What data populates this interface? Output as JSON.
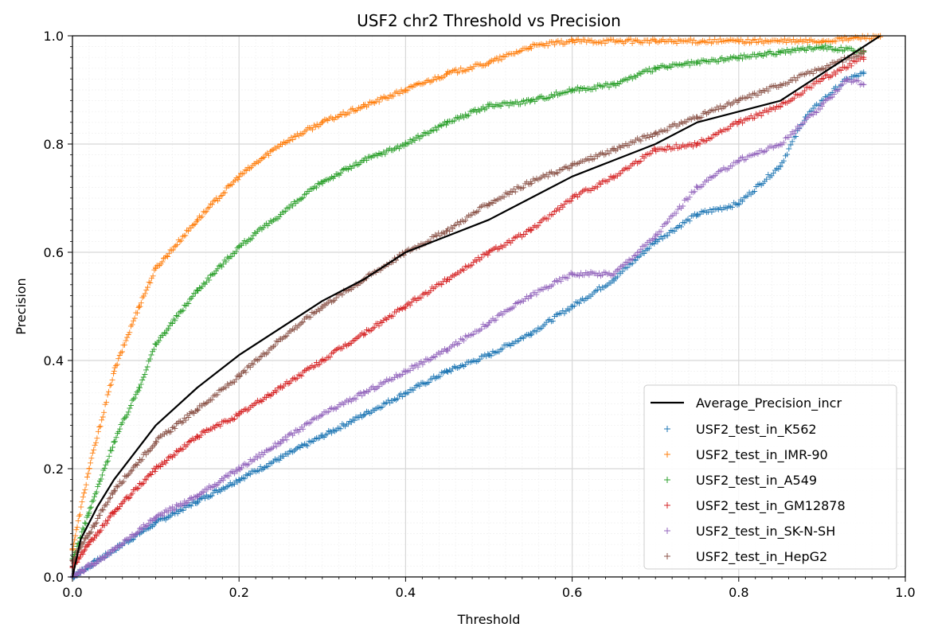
{
  "chart_data": {
    "type": "scatter",
    "title": "USF2 chr2 Threshold vs Precision",
    "xlabel": "Threshold",
    "ylabel": "Precision",
    "xlim": [
      0.0,
      1.0
    ],
    "ylim": [
      0.0,
      1.0
    ],
    "x_ticks": [
      "0.0",
      "0.2",
      "0.4",
      "0.6",
      "0.8",
      "1.0"
    ],
    "y_ticks": [
      "0.0",
      "0.2",
      "0.4",
      "0.6",
      "0.8",
      "1.0"
    ],
    "grid": true,
    "minor_grid": true,
    "legend_position": "lower-right",
    "line": {
      "name": "Average_Precision_incr",
      "color": "#000000",
      "points": [
        [
          0.0,
          0.0
        ],
        [
          0.01,
          0.07
        ],
        [
          0.03,
          0.13
        ],
        [
          0.05,
          0.18
        ],
        [
          0.1,
          0.28
        ],
        [
          0.15,
          0.35
        ],
        [
          0.2,
          0.41
        ],
        [
          0.25,
          0.46
        ],
        [
          0.3,
          0.51
        ],
        [
          0.35,
          0.55
        ],
        [
          0.4,
          0.6
        ],
        [
          0.45,
          0.63
        ],
        [
          0.5,
          0.66
        ],
        [
          0.55,
          0.7
        ],
        [
          0.6,
          0.74
        ],
        [
          0.65,
          0.77
        ],
        [
          0.7,
          0.8
        ],
        [
          0.75,
          0.84
        ],
        [
          0.8,
          0.86
        ],
        [
          0.85,
          0.88
        ],
        [
          0.9,
          0.93
        ],
        [
          0.95,
          0.98
        ],
        [
          0.97,
          1.0
        ]
      ]
    },
    "series": [
      {
        "name": "USF2_test_in_K562",
        "color": "#1f77b4",
        "points": [
          [
            0.0,
            0.0
          ],
          [
            0.05,
            0.05
          ],
          [
            0.1,
            0.1
          ],
          [
            0.15,
            0.14
          ],
          [
            0.2,
            0.18
          ],
          [
            0.25,
            0.22
          ],
          [
            0.3,
            0.26
          ],
          [
            0.35,
            0.3
          ],
          [
            0.4,
            0.34
          ],
          [
            0.45,
            0.38
          ],
          [
            0.5,
            0.41
          ],
          [
            0.55,
            0.45
          ],
          [
            0.6,
            0.5
          ],
          [
            0.65,
            0.55
          ],
          [
            0.7,
            0.62
          ],
          [
            0.75,
            0.67
          ],
          [
            0.8,
            0.69
          ],
          [
            0.85,
            0.76
          ],
          [
            0.88,
            0.85
          ],
          [
            0.9,
            0.88
          ],
          [
            0.93,
            0.92
          ],
          [
            0.95,
            0.93
          ]
        ]
      },
      {
        "name": "USF2_test_in_IMR-90",
        "color": "#ff7f0e",
        "points": [
          [
            0.0,
            0.05
          ],
          [
            0.02,
            0.2
          ],
          [
            0.05,
            0.38
          ],
          [
            0.08,
            0.5
          ],
          [
            0.1,
            0.57
          ],
          [
            0.15,
            0.66
          ],
          [
            0.2,
            0.74
          ],
          [
            0.25,
            0.8
          ],
          [
            0.3,
            0.84
          ],
          [
            0.35,
            0.87
          ],
          [
            0.4,
            0.9
          ],
          [
            0.45,
            0.93
          ],
          [
            0.5,
            0.95
          ],
          [
            0.55,
            0.98
          ],
          [
            0.6,
            0.99
          ],
          [
            0.7,
            0.99
          ],
          [
            0.8,
            0.99
          ],
          [
            0.9,
            0.99
          ],
          [
            0.97,
            1.0
          ]
        ]
      },
      {
        "name": "USF2_test_in_A549",
        "color": "#2ca02c",
        "points": [
          [
            0.0,
            0.03
          ],
          [
            0.02,
            0.12
          ],
          [
            0.05,
            0.25
          ],
          [
            0.08,
            0.35
          ],
          [
            0.1,
            0.43
          ],
          [
            0.15,
            0.53
          ],
          [
            0.2,
            0.61
          ],
          [
            0.25,
            0.67
          ],
          [
            0.3,
            0.73
          ],
          [
            0.35,
            0.77
          ],
          [
            0.4,
            0.8
          ],
          [
            0.45,
            0.84
          ],
          [
            0.5,
            0.87
          ],
          [
            0.55,
            0.88
          ],
          [
            0.6,
            0.9
          ],
          [
            0.65,
            0.91
          ],
          [
            0.7,
            0.94
          ],
          [
            0.75,
            0.95
          ],
          [
            0.8,
            0.96
          ],
          [
            0.85,
            0.97
          ],
          [
            0.9,
            0.98
          ],
          [
            0.95,
            0.97
          ]
        ]
      },
      {
        "name": "USF2_test_in_GM12878",
        "color": "#d62728",
        "points": [
          [
            0.0,
            0.02
          ],
          [
            0.02,
            0.06
          ],
          [
            0.05,
            0.12
          ],
          [
            0.1,
            0.2
          ],
          [
            0.15,
            0.26
          ],
          [
            0.2,
            0.3
          ],
          [
            0.25,
            0.35
          ],
          [
            0.3,
            0.4
          ],
          [
            0.35,
            0.45
          ],
          [
            0.4,
            0.5
          ],
          [
            0.45,
            0.55
          ],
          [
            0.5,
            0.6
          ],
          [
            0.55,
            0.64
          ],
          [
            0.6,
            0.7
          ],
          [
            0.65,
            0.74
          ],
          [
            0.7,
            0.79
          ],
          [
            0.75,
            0.8
          ],
          [
            0.8,
            0.84
          ],
          [
            0.85,
            0.87
          ],
          [
            0.9,
            0.92
          ],
          [
            0.95,
            0.96
          ]
        ]
      },
      {
        "name": "USF2_test_in_SK-N-SH",
        "color": "#9467bd",
        "points": [
          [
            0.0,
            0.0
          ],
          [
            0.05,
            0.05
          ],
          [
            0.1,
            0.11
          ],
          [
            0.15,
            0.15
          ],
          [
            0.2,
            0.2
          ],
          [
            0.25,
            0.25
          ],
          [
            0.3,
            0.3
          ],
          [
            0.35,
            0.34
          ],
          [
            0.4,
            0.38
          ],
          [
            0.45,
            0.42
          ],
          [
            0.5,
            0.47
          ],
          [
            0.55,
            0.52
          ],
          [
            0.6,
            0.56
          ],
          [
            0.65,
            0.56
          ],
          [
            0.7,
            0.63
          ],
          [
            0.75,
            0.72
          ],
          [
            0.8,
            0.77
          ],
          [
            0.85,
            0.8
          ],
          [
            0.9,
            0.87
          ],
          [
            0.93,
            0.92
          ],
          [
            0.95,
            0.91
          ]
        ]
      },
      {
        "name": "USF2_test_in_HepG2",
        "color": "#8c564b",
        "points": [
          [
            0.0,
            0.03
          ],
          [
            0.02,
            0.08
          ],
          [
            0.05,
            0.16
          ],
          [
            0.1,
            0.25
          ],
          [
            0.15,
            0.31
          ],
          [
            0.2,
            0.37
          ],
          [
            0.25,
            0.44
          ],
          [
            0.3,
            0.5
          ],
          [
            0.35,
            0.55
          ],
          [
            0.4,
            0.6
          ],
          [
            0.45,
            0.64
          ],
          [
            0.5,
            0.69
          ],
          [
            0.55,
            0.73
          ],
          [
            0.6,
            0.76
          ],
          [
            0.65,
            0.79
          ],
          [
            0.7,
            0.82
          ],
          [
            0.75,
            0.85
          ],
          [
            0.8,
            0.88
          ],
          [
            0.85,
            0.91
          ],
          [
            0.9,
            0.94
          ],
          [
            0.95,
            0.97
          ]
        ]
      }
    ]
  }
}
